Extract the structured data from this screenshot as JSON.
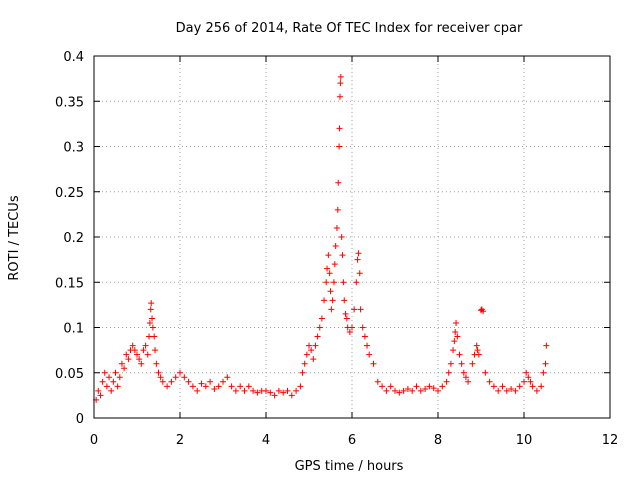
{
  "chart_data": {
    "type": "scatter",
    "title": "Day 256 of 2014, Rate Of TEC Index for receiver cpar",
    "xlabel": "GPS time / hours",
    "ylabel": "ROTI / TECUs",
    "xlim": [
      0,
      12
    ],
    "ylim": [
      0,
      0.4
    ],
    "xticks": [
      0,
      2,
      4,
      6,
      8,
      10,
      12
    ],
    "yticks": [
      0,
      0.05,
      0.1,
      0.15,
      0.2,
      0.25,
      0.3,
      0.35,
      0.4
    ],
    "xtick_labels": [
      "0",
      "2",
      "4",
      "6",
      "8",
      "10",
      "12"
    ],
    "ytick_labels": [
      "0",
      "0.05",
      "0.1",
      "0.15",
      "0.2",
      "0.25",
      "0.3",
      "0.35",
      "0.4"
    ],
    "grid": true,
    "marker": "+",
    "color": "#ff0000",
    "series": [
      {
        "name": "ROTI",
        "points": [
          [
            0.05,
            0.02
          ],
          [
            0.1,
            0.03
          ],
          [
            0.15,
            0.025
          ],
          [
            0.2,
            0.04
          ],
          [
            0.25,
            0.05
          ],
          [
            0.3,
            0.035
          ],
          [
            0.35,
            0.045
          ],
          [
            0.4,
            0.03
          ],
          [
            0.45,
            0.04
          ],
          [
            0.5,
            0.05
          ],
          [
            0.55,
            0.035
          ],
          [
            0.6,
            0.045
          ],
          [
            0.65,
            0.06
          ],
          [
            0.7,
            0.055
          ],
          [
            0.75,
            0.07
          ],
          [
            0.8,
            0.065
          ],
          [
            0.85,
            0.075
          ],
          [
            0.9,
            0.08
          ],
          [
            0.95,
            0.075
          ],
          [
            1.0,
            0.07
          ],
          [
            1.05,
            0.065
          ],
          [
            1.1,
            0.06
          ],
          [
            1.15,
            0.075
          ],
          [
            1.2,
            0.08
          ],
          [
            1.25,
            0.07
          ],
          [
            1.28,
            0.09
          ],
          [
            1.3,
            0.105
          ],
          [
            1.32,
            0.12
          ],
          [
            1.33,
            0.127
          ],
          [
            1.35,
            0.11
          ],
          [
            1.37,
            0.1
          ],
          [
            1.4,
            0.09
          ],
          [
            1.42,
            0.075
          ],
          [
            1.45,
            0.06
          ],
          [
            1.5,
            0.05
          ],
          [
            1.55,
            0.045
          ],
          [
            1.6,
            0.04
          ],
          [
            1.7,
            0.035
          ],
          [
            1.8,
            0.04
          ],
          [
            1.9,
            0.045
          ],
          [
            2.0,
            0.05
          ],
          [
            2.1,
            0.045
          ],
          [
            2.2,
            0.04
          ],
          [
            2.3,
            0.035
          ],
          [
            2.4,
            0.03
          ],
          [
            2.5,
            0.038
          ],
          [
            2.6,
            0.035
          ],
          [
            2.7,
            0.04
          ],
          [
            2.8,
            0.032
          ],
          [
            2.9,
            0.035
          ],
          [
            3.0,
            0.04
          ],
          [
            3.1,
            0.045
          ],
          [
            3.2,
            0.035
          ],
          [
            3.3,
            0.03
          ],
          [
            3.4,
            0.035
          ],
          [
            3.5,
            0.03
          ],
          [
            3.6,
            0.035
          ],
          [
            3.7,
            0.03
          ],
          [
            3.8,
            0.028
          ],
          [
            3.9,
            0.03
          ],
          [
            4.0,
            0.03
          ],
          [
            4.1,
            0.028
          ],
          [
            4.2,
            0.025
          ],
          [
            4.3,
            0.03
          ],
          [
            4.4,
            0.028
          ],
          [
            4.5,
            0.03
          ],
          [
            4.6,
            0.025
          ],
          [
            4.7,
            0.03
          ],
          [
            4.8,
            0.035
          ],
          [
            4.85,
            0.05
          ],
          [
            4.9,
            0.06
          ],
          [
            4.95,
            0.07
          ],
          [
            5.0,
            0.08
          ],
          [
            5.05,
            0.075
          ],
          [
            5.1,
            0.065
          ],
          [
            5.15,
            0.08
          ],
          [
            5.2,
            0.09
          ],
          [
            5.25,
            0.1
          ],
          [
            5.3,
            0.11
          ],
          [
            5.35,
            0.13
          ],
          [
            5.4,
            0.15
          ],
          [
            5.42,
            0.165
          ],
          [
            5.45,
            0.18
          ],
          [
            5.48,
            0.16
          ],
          [
            5.5,
            0.14
          ],
          [
            5.52,
            0.12
          ],
          [
            5.55,
            0.13
          ],
          [
            5.58,
            0.15
          ],
          [
            5.6,
            0.17
          ],
          [
            5.62,
            0.19
          ],
          [
            5.65,
            0.21
          ],
          [
            5.67,
            0.23
          ],
          [
            5.68,
            0.26
          ],
          [
            5.7,
            0.3
          ],
          [
            5.71,
            0.32
          ],
          [
            5.72,
            0.355
          ],
          [
            5.73,
            0.37
          ],
          [
            5.74,
            0.377
          ],
          [
            5.76,
            0.2
          ],
          [
            5.78,
            0.18
          ],
          [
            5.8,
            0.15
          ],
          [
            5.82,
            0.13
          ],
          [
            5.85,
            0.115
          ],
          [
            5.88,
            0.11
          ],
          [
            5.9,
            0.1
          ],
          [
            5.95,
            0.095
          ],
          [
            6.0,
            0.1
          ],
          [
            6.05,
            0.12
          ],
          [
            6.1,
            0.15
          ],
          [
            6.13,
            0.175
          ],
          [
            6.15,
            0.182
          ],
          [
            6.18,
            0.16
          ],
          [
            6.2,
            0.12
          ],
          [
            6.25,
            0.1
          ],
          [
            6.3,
            0.09
          ],
          [
            6.35,
            0.08
          ],
          [
            6.4,
            0.07
          ],
          [
            6.5,
            0.06
          ],
          [
            6.6,
            0.04
          ],
          [
            6.7,
            0.035
          ],
          [
            6.8,
            0.03
          ],
          [
            6.9,
            0.035
          ],
          [
            7.0,
            0.03
          ],
          [
            7.1,
            0.028
          ],
          [
            7.2,
            0.03
          ],
          [
            7.3,
            0.032
          ],
          [
            7.4,
            0.03
          ],
          [
            7.5,
            0.035
          ],
          [
            7.6,
            0.03
          ],
          [
            7.7,
            0.032
          ],
          [
            7.8,
            0.035
          ],
          [
            7.9,
            0.033
          ],
          [
            8.0,
            0.03
          ],
          [
            8.1,
            0.035
          ],
          [
            8.2,
            0.04
          ],
          [
            8.25,
            0.05
          ],
          [
            8.3,
            0.06
          ],
          [
            8.35,
            0.075
          ],
          [
            8.38,
            0.085
          ],
          [
            8.4,
            0.095
          ],
          [
            8.42,
            0.105
          ],
          [
            8.45,
            0.09
          ],
          [
            8.5,
            0.07
          ],
          [
            8.55,
            0.06
          ],
          [
            8.6,
            0.05
          ],
          [
            8.65,
            0.045
          ],
          [
            8.7,
            0.04
          ],
          [
            8.8,
            0.06
          ],
          [
            8.85,
            0.07
          ],
          [
            8.9,
            0.08
          ],
          [
            8.92,
            0.075
          ],
          [
            8.95,
            0.07
          ],
          [
            9.0,
            0.119
          ],
          [
            9.02,
            0.12
          ],
          [
            9.05,
            0.118
          ],
          [
            9.1,
            0.05
          ],
          [
            9.2,
            0.04
          ],
          [
            9.3,
            0.035
          ],
          [
            9.4,
            0.03
          ],
          [
            9.5,
            0.035
          ],
          [
            9.6,
            0.03
          ],
          [
            9.7,
            0.032
          ],
          [
            9.8,
            0.03
          ],
          [
            9.9,
            0.035
          ],
          [
            10.0,
            0.04
          ],
          [
            10.05,
            0.05
          ],
          [
            10.1,
            0.045
          ],
          [
            10.15,
            0.04
          ],
          [
            10.2,
            0.035
          ],
          [
            10.3,
            0.03
          ],
          [
            10.4,
            0.035
          ],
          [
            10.45,
            0.05
          ],
          [
            10.5,
            0.06
          ],
          [
            10.52,
            0.08
          ]
        ]
      }
    ]
  }
}
